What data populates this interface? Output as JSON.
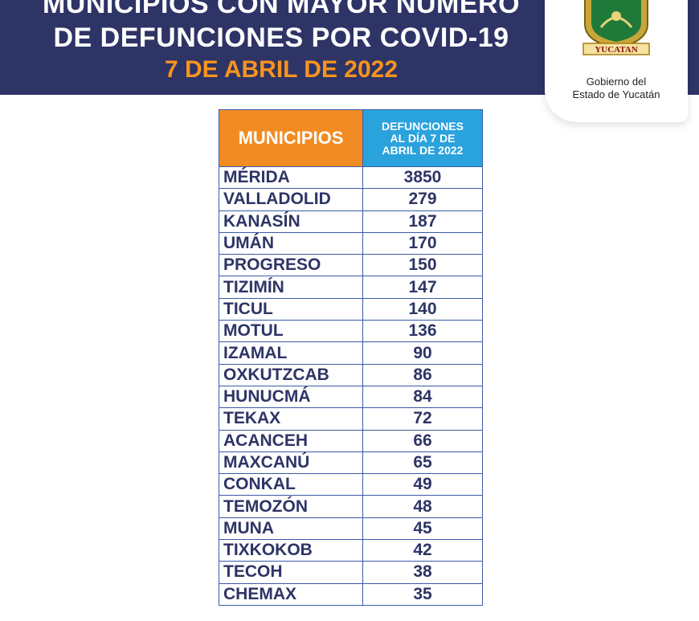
{
  "header": {
    "title_line1": "MUNICIPIOS CON MAYOR NÚMERO",
    "title_line2": "DE DEFUNCIONES POR COVID-19",
    "date": "7 DE ABRIL DE 2022"
  },
  "logo": {
    "seal_text": "YUCATAN",
    "text_line1": "Gobierno del",
    "text_line2": "Estado de Yucatán"
  },
  "table": {
    "headers": {
      "municipios": "MUNICIPIOS",
      "defunciones_line1": "DEFUNCIONES",
      "defunciones_line2": "AL DÍA 7 DE",
      "defunciones_line3": "ABRIL DE 2022"
    },
    "rows": [
      {
        "municipio": "MÉRIDA",
        "defunciones": "3850"
      },
      {
        "municipio": "VALLADOLID",
        "defunciones": "279"
      },
      {
        "municipio": "KANASÍN",
        "defunciones": "187"
      },
      {
        "municipio": "UMÁN",
        "defunciones": "170"
      },
      {
        "municipio": "PROGRESO",
        "defunciones": "150"
      },
      {
        "municipio": "TIZIMÍN",
        "defunciones": "147"
      },
      {
        "municipio": "TICUL",
        "defunciones": "140"
      },
      {
        "municipio": "MOTUL",
        "defunciones": "136"
      },
      {
        "municipio": "IZAMAL",
        "defunciones": "90"
      },
      {
        "municipio": "OXKUTZCAB",
        "defunciones": "86"
      },
      {
        "municipio": "HUNUCMÁ",
        "defunciones": "84"
      },
      {
        "municipio": "TEKAX",
        "defunciones": "72"
      },
      {
        "municipio": "ACANCEH",
        "defunciones": "66"
      },
      {
        "municipio": "MAXCANÚ",
        "defunciones": "65"
      },
      {
        "municipio": "CONKAL",
        "defunciones": "49"
      },
      {
        "municipio": "TEMOZÓN",
        "defunciones": "48"
      },
      {
        "municipio": "MUNA",
        "defunciones": "45"
      },
      {
        "municipio": "TIXKOKOB",
        "defunciones": "42"
      },
      {
        "municipio": "TECOH",
        "defunciones": "38"
      },
      {
        "municipio": "CHEMAX",
        "defunciones": "35"
      }
    ]
  },
  "colors": {
    "header_bg": "#2e3466",
    "date_orange": "#f7941d",
    "municipios_header": "#f28c22",
    "defunciones_header": "#2aa3dd",
    "table_text": "#2e3466",
    "table_border": "#3a5aa8"
  }
}
